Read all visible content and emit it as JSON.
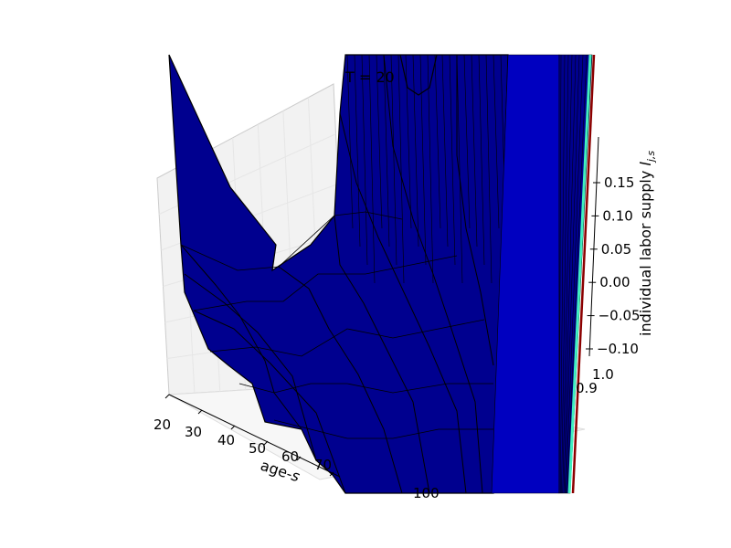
{
  "chart_data": {
    "type": "surface3d",
    "title": "T = 20",
    "xlabel": "age-$s$",
    "zlabel": "individual labor supply $l_{j,s}$",
    "x_ticks": [
      "20",
      "30",
      "40",
      "50",
      "60",
      "70",
      "100"
    ],
    "y_ticks": [
      "0.9",
      "1.0"
    ],
    "z_ticks": [
      "0.15",
      "0.10",
      "0.05",
      "0.00",
      "−0.05",
      "−0.10"
    ],
    "x_range": [
      20,
      100
    ],
    "y_range": [
      0.9,
      1.0
    ],
    "z_range": [
      -0.1,
      0.15
    ],
    "grid": true,
    "colors": {
      "surface": "#00008f",
      "surface_light": "#0000c0",
      "edge": "#000000",
      "pane": "#f2f2f2",
      "grid": "#e6e6e6",
      "accent_cyan": "#40f0c0",
      "accent_red": "#8b0000"
    }
  }
}
